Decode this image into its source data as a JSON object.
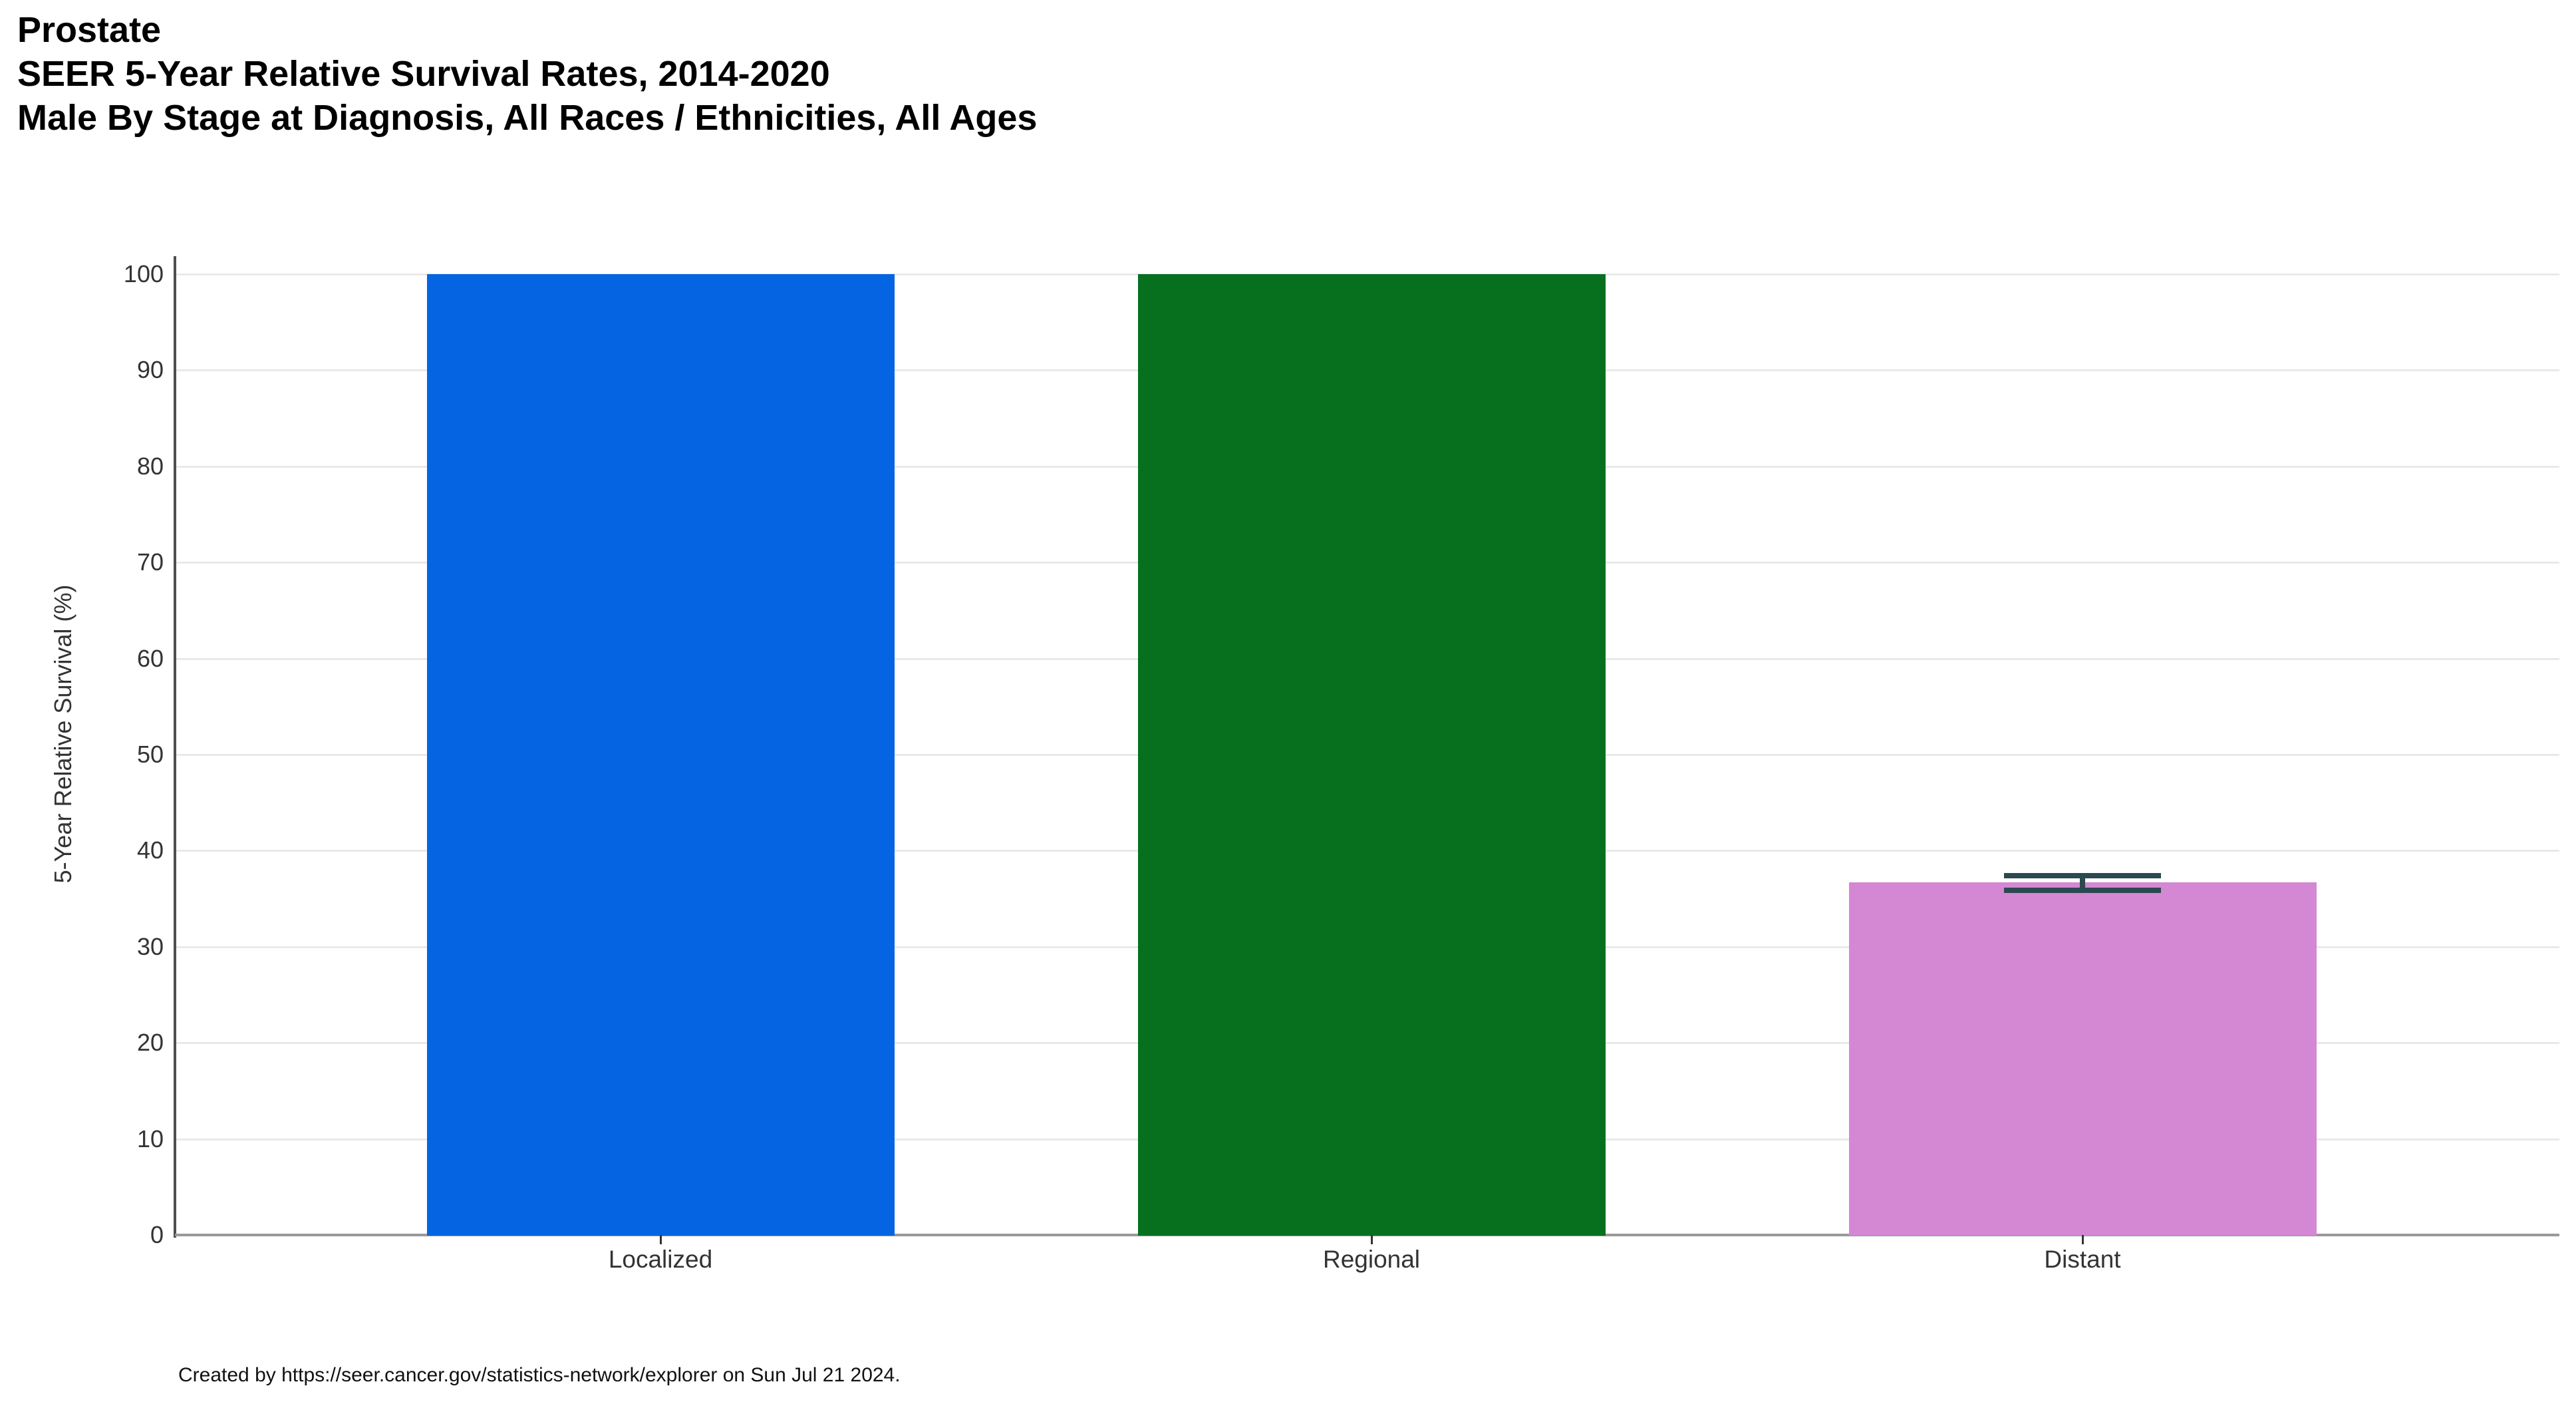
{
  "header": {
    "title_line1": "Prostate",
    "title_line2": "SEER 5-Year Relative Survival Rates, 2014-2020",
    "title_line3": "Male By Stage at Diagnosis, All Races / Ethnicities, All Ages"
  },
  "chart_data": {
    "type": "bar",
    "title": "Prostate",
    "subtitle": "SEER 5-Year Relative Survival Rates, 2014-2020",
    "subtitle2": "Male By Stage at Diagnosis, All Races / Ethnicities, All Ages",
    "categories": [
      "Localized",
      "Regional",
      "Distant"
    ],
    "values": [
      100,
      100,
      36.7
    ],
    "error_bars": [
      null,
      null,
      {
        "low": 35.9,
        "high": 37.4
      }
    ],
    "bar_colors": [
      "#0564E1",
      "#07701F",
      "#D487D2"
    ],
    "error_bar_color": "#2C4850",
    "xlabel": "",
    "ylabel": "5-Year Relative Survival (%)",
    "ylim": [
      0,
      100
    ],
    "yticks": [
      0,
      10,
      20,
      30,
      40,
      50,
      60,
      70,
      80,
      90,
      100
    ],
    "grid": "horizontal",
    "legend": "none"
  },
  "footer": {
    "credit": "Created by https://seer.cancer.gov/statistics-network/explorer on Sun Jul 21 2024."
  }
}
